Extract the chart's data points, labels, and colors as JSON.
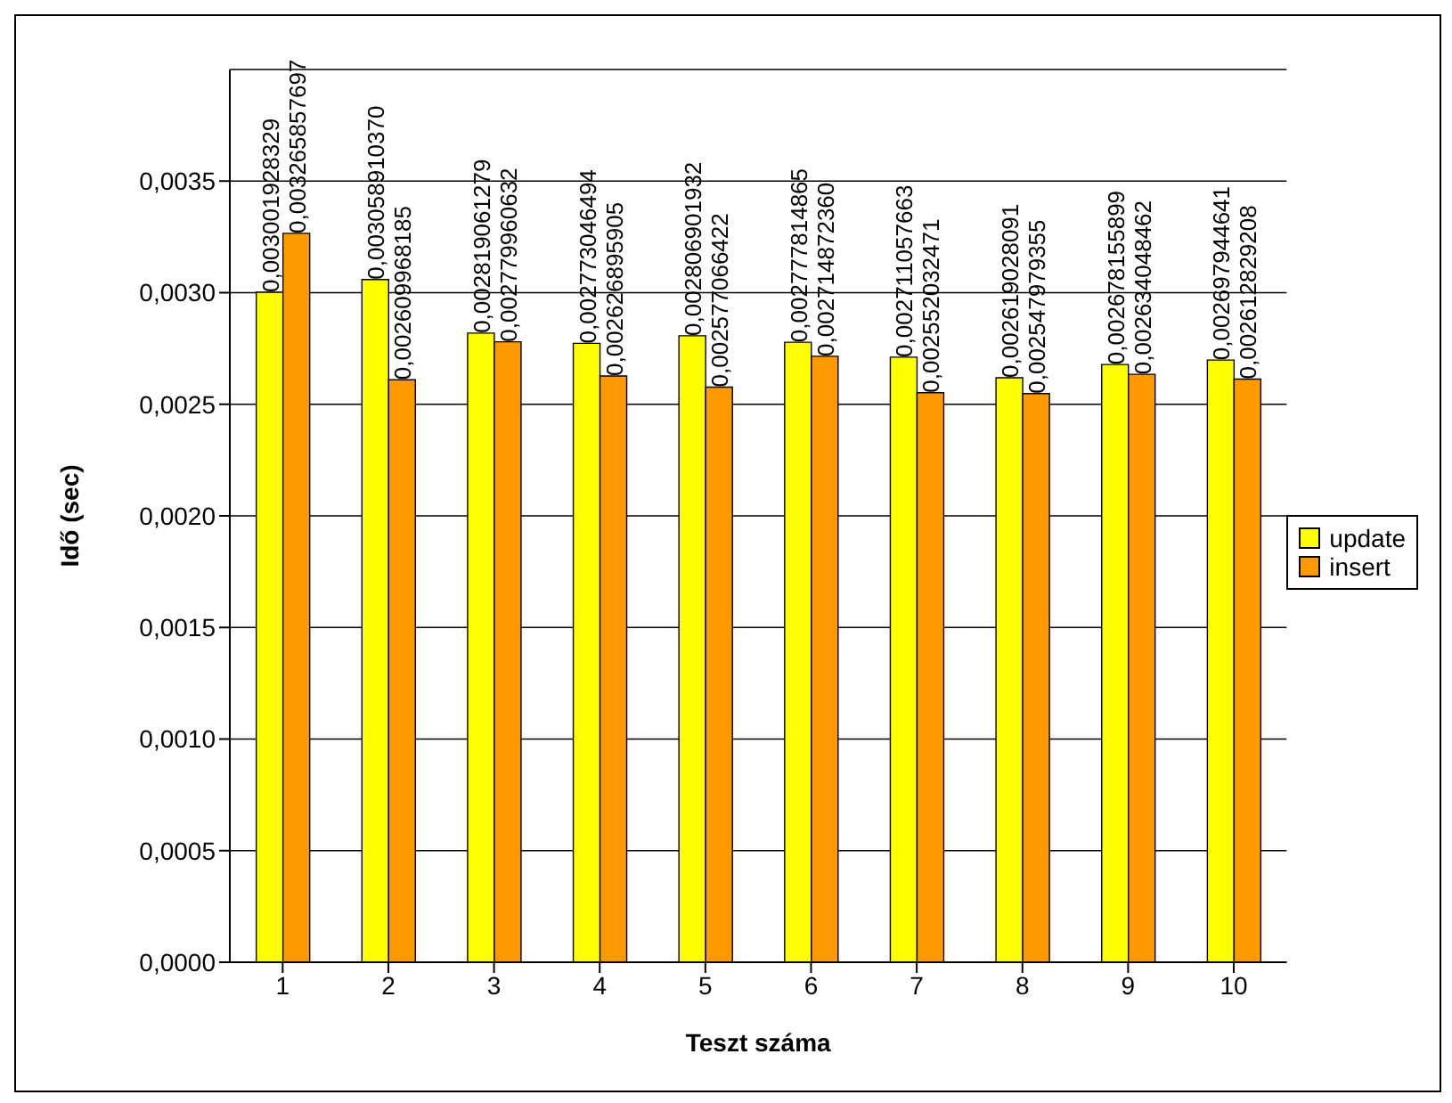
{
  "chart_data": {
    "type": "bar",
    "xlabel": "Teszt száma",
    "ylabel": "Idő (sec)",
    "categories": [
      "1",
      "2",
      "3",
      "4",
      "5",
      "6",
      "7",
      "8",
      "9",
      "10"
    ],
    "series": [
      {
        "name": "update",
        "color": "#ffff00",
        "values": [
          0.003001928329,
          0.00305891037,
          0.002819061279,
          0.002773046494,
          0.002806901932,
          0.002777814865,
          0.002711057663,
          0.002619028091,
          0.002678155899,
          0.002697944641
        ],
        "value_labels": [
          "0,003001928329",
          "0,003058910370",
          "0,002819061279",
          "0,002773046494",
          "0,002806901932",
          "0,002777814865",
          "0,002711057663",
          "0,002619028091",
          "0,002678155899",
          "0,002697944641"
        ]
      },
      {
        "name": "insert",
        "color": "#ff9900",
        "values": [
          0.003265857697,
          0.002609968185,
          0.002779960632,
          0.002626895905,
          0.002577066422,
          0.00271487236,
          0.002552032471,
          0.002547979355,
          0.002634048462,
          0.002612829208
        ],
        "value_labels": [
          "0,003265857697",
          "0,002609968185",
          "0,002779960632",
          "0,002626895905",
          "0,002577066422",
          "0,002714872360",
          "0,002552032471",
          "0,002547979355",
          "0,002634048462",
          "0,002612829208"
        ]
      }
    ],
    "ylim": [
      0,
      0.004
    ],
    "yticks": [
      {
        "value": 0,
        "label": "0,0000"
      },
      {
        "value": 0.0005,
        "label": "0,0005"
      },
      {
        "value": 0.001,
        "label": "0,0010"
      },
      {
        "value": 0.0015,
        "label": "0,0015"
      },
      {
        "value": 0.002,
        "label": "0,0020"
      },
      {
        "value": 0.0025,
        "label": "0,0025"
      },
      {
        "value": 0.003,
        "label": "0,0030"
      },
      {
        "value": 0.0035,
        "label": "0,0035"
      }
    ],
    "grid": "y",
    "legend": "right"
  }
}
